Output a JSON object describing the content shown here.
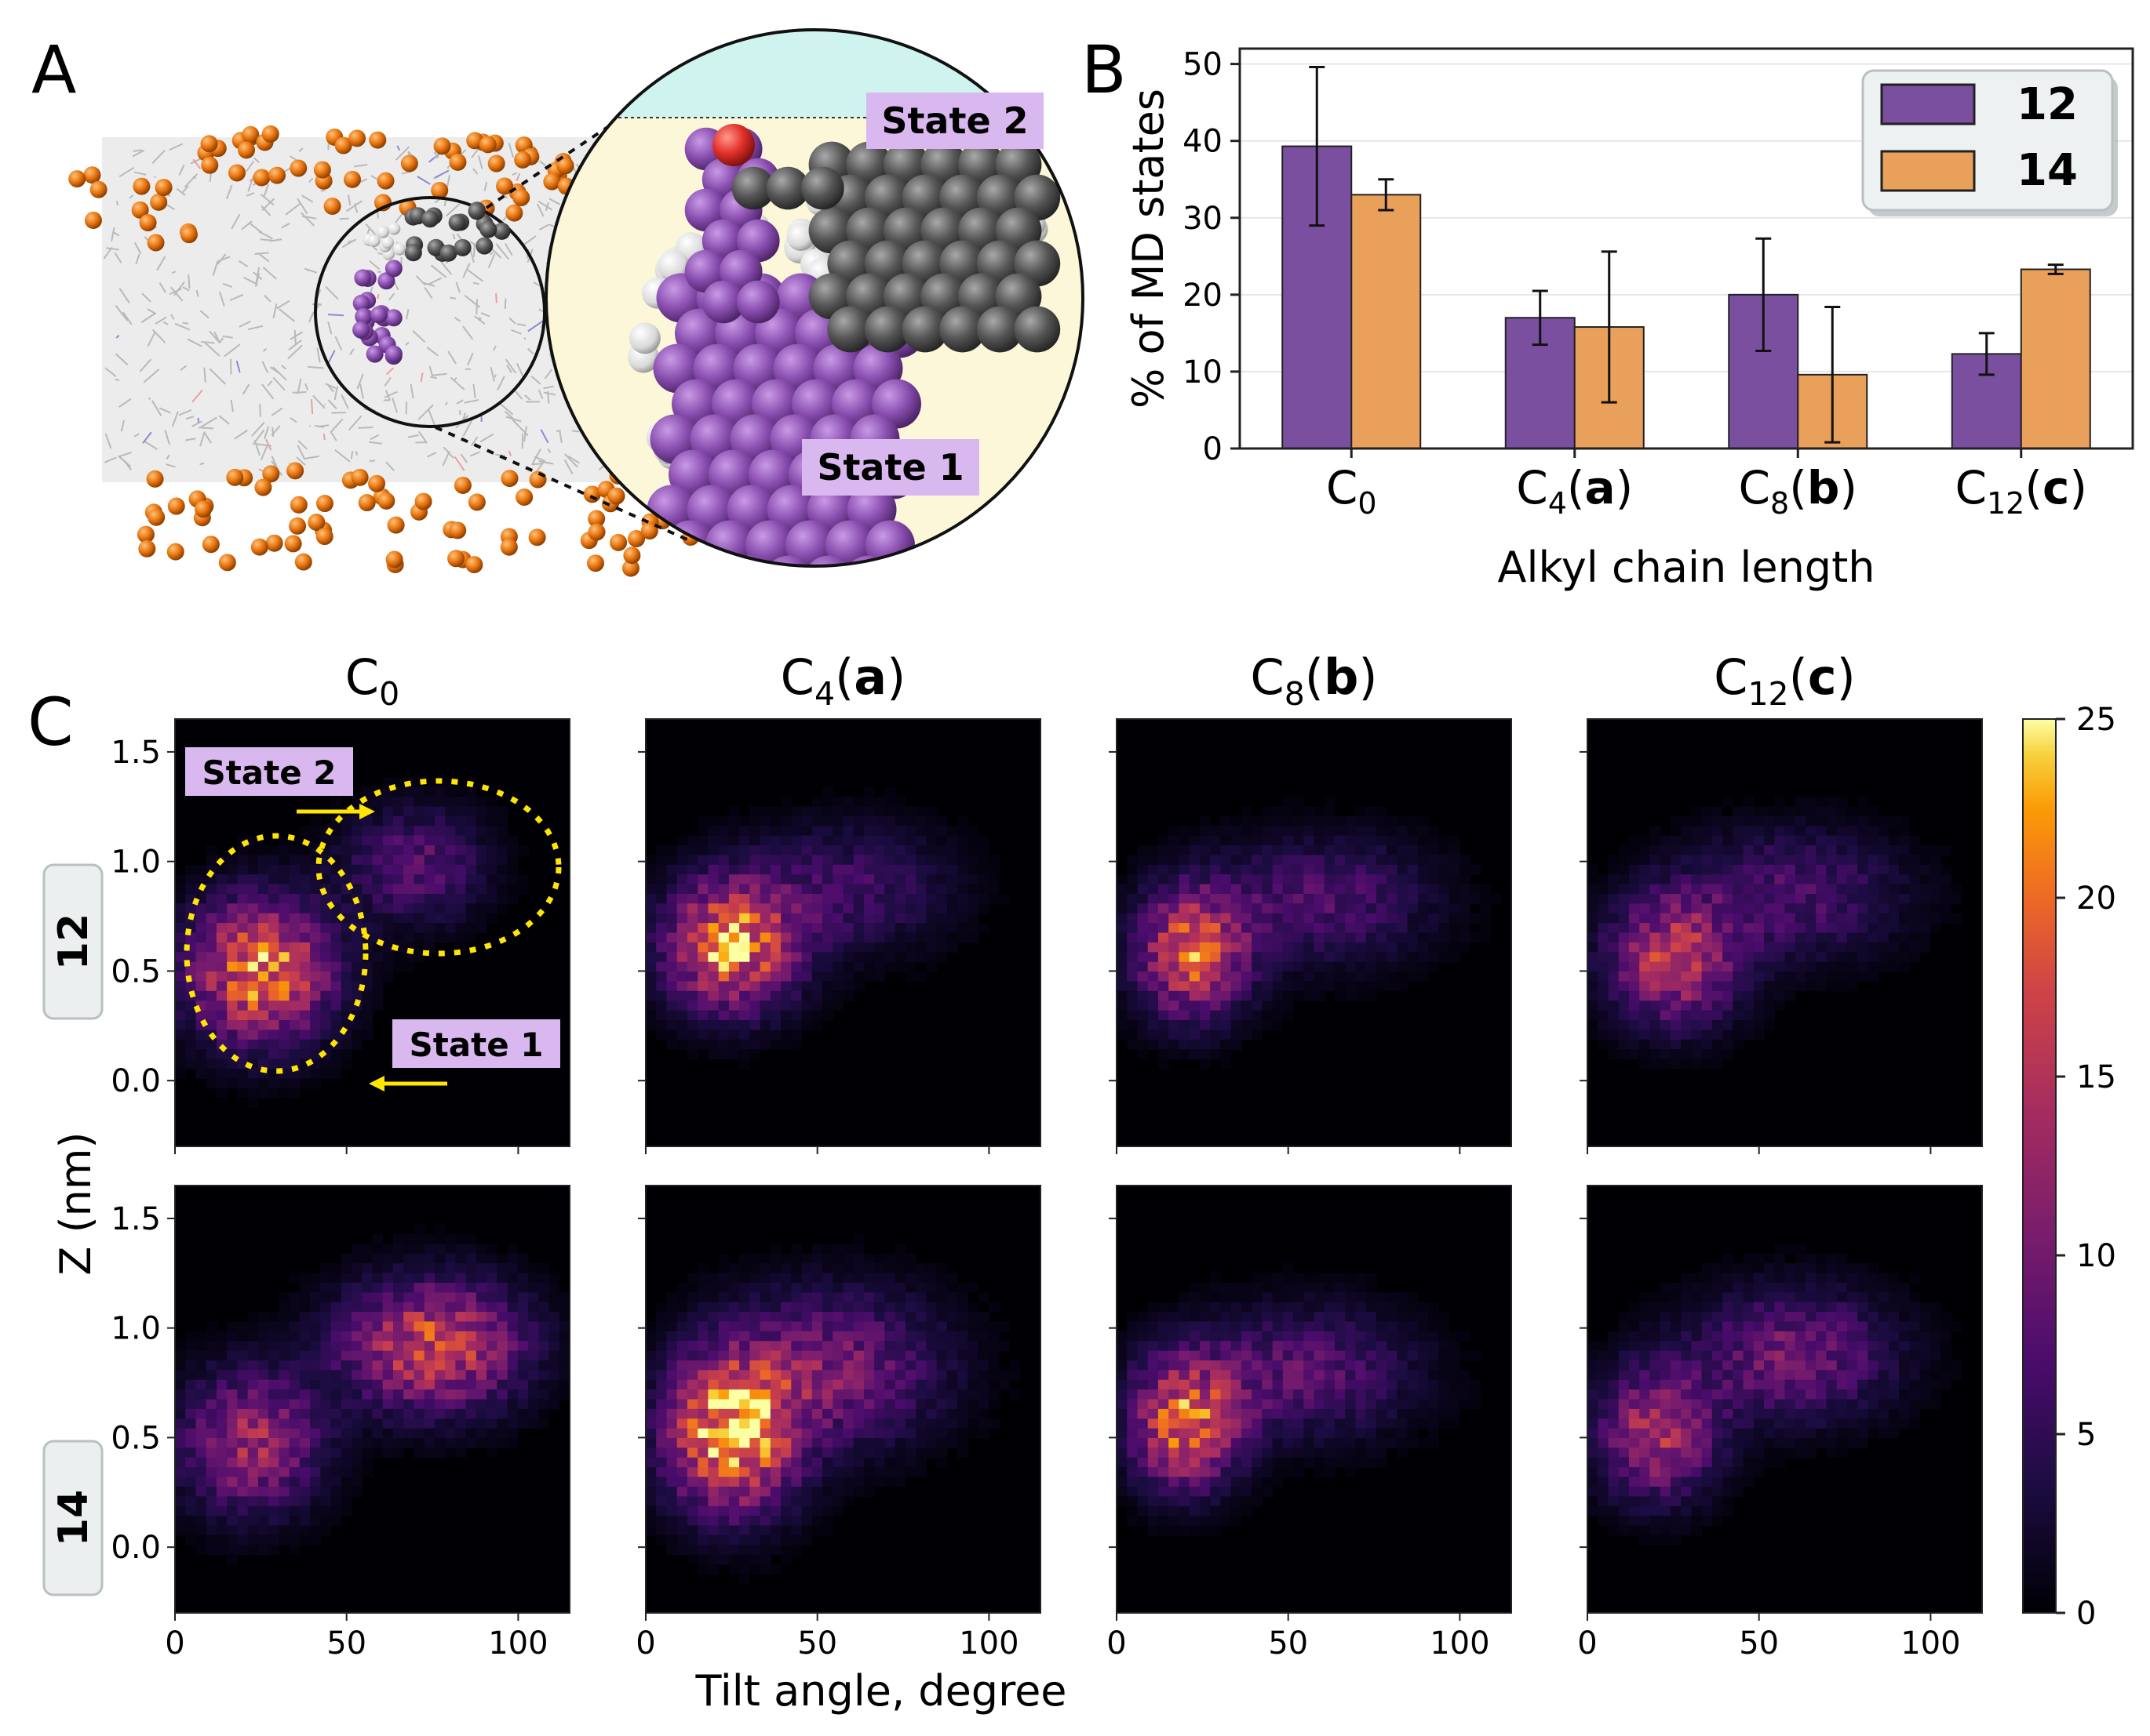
{
  "panels": {
    "a": "A",
    "b": "B",
    "c": "C"
  },
  "panel_a": {
    "callouts": {
      "state2": "State 2",
      "state1": "State 1"
    },
    "colors": {
      "membrane": "#cfcfcf",
      "phosphate": "#e8750f",
      "purple": "#8a4fb0",
      "gray": "#555555",
      "oxygen": "#e0302a",
      "inset_bg": "#fbf7d8",
      "water": "#cff3ef"
    }
  },
  "chart_data": [
    {
      "type": "bar",
      "panel": "B",
      "categories": [
        "C0",
        "C4(a)",
        "C8(b)",
        "C12(c)"
      ],
      "series": [
        {
          "name": "12",
          "color": "#7b4fa0",
          "values": [
            39.3,
            17.0,
            20.0,
            12.3
          ],
          "errors": [
            10.3,
            3.5,
            7.3,
            2.7
          ]
        },
        {
          "name": "14",
          "color": "#e9a05a",
          "values": [
            33.0,
            15.8,
            9.6,
            23.3
          ],
          "errors": [
            2.0,
            9.8,
            8.8,
            0.6
          ]
        }
      ],
      "xlabel": "Alkyl chain length",
      "ylabel": "% of MD states",
      "ylim": [
        0,
        52
      ],
      "yticks": [
        0,
        10,
        20,
        30,
        40,
        50
      ],
      "grid": true,
      "legend": "top-right"
    },
    {
      "type": "heatmap",
      "panel": "C",
      "columns": [
        "C0",
        "C4(a)",
        "C8(b)",
        "C12(c)"
      ],
      "rows": [
        "12",
        "14"
      ],
      "xlabel": "Tilt angle, degree",
      "ylabel": "Z (nm)",
      "xlim": [
        0,
        115
      ],
      "ylim": [
        -0.3,
        1.65
      ],
      "xticks": [
        0,
        50,
        100
      ],
      "yticks": [
        0.0,
        0.5,
        1.0,
        1.5
      ],
      "colorbar": {
        "min": 0,
        "max": 25,
        "ticks": [
          0,
          5,
          10,
          15,
          20,
          25
        ],
        "colormap": "inferno"
      },
      "annotations": [
        "State 2",
        "State 1"
      ],
      "clusters": [
        [
          [
            [
              25,
              0.5,
              14,
              0.22,
              21
            ],
            [
              70,
              0.98,
              14,
              0.18,
              8
            ]
          ],
          [
            [
              25,
              0.62,
              13,
              0.2,
              21
            ],
            [
              60,
              0.88,
              20,
              0.2,
              6
            ]
          ],
          [
            [
              22,
              0.58,
              11,
              0.2,
              18
            ],
            [
              60,
              0.82,
              22,
              0.2,
              7
            ]
          ],
          [
            [
              25,
              0.55,
              13,
              0.2,
              15
            ],
            [
              60,
              0.85,
              22,
              0.2,
              7
            ]
          ]
        ],
        [
          [
            [
              22,
              0.48,
              14,
              0.22,
              13
            ],
            [
              75,
              0.92,
              18,
              0.2,
              17
            ]
          ],
          [
            [
              25,
              0.52,
              13,
              0.24,
              23
            ],
            [
              55,
              0.82,
              22,
              0.24,
              10
            ]
          ],
          [
            [
              20,
              0.57,
              11,
              0.2,
              19
            ],
            [
              55,
              0.8,
              22,
              0.2,
              8
            ]
          ],
          [
            [
              20,
              0.52,
              12,
              0.2,
              14
            ],
            [
              60,
              0.88,
              20,
              0.2,
              10
            ]
          ]
        ]
      ]
    }
  ]
}
